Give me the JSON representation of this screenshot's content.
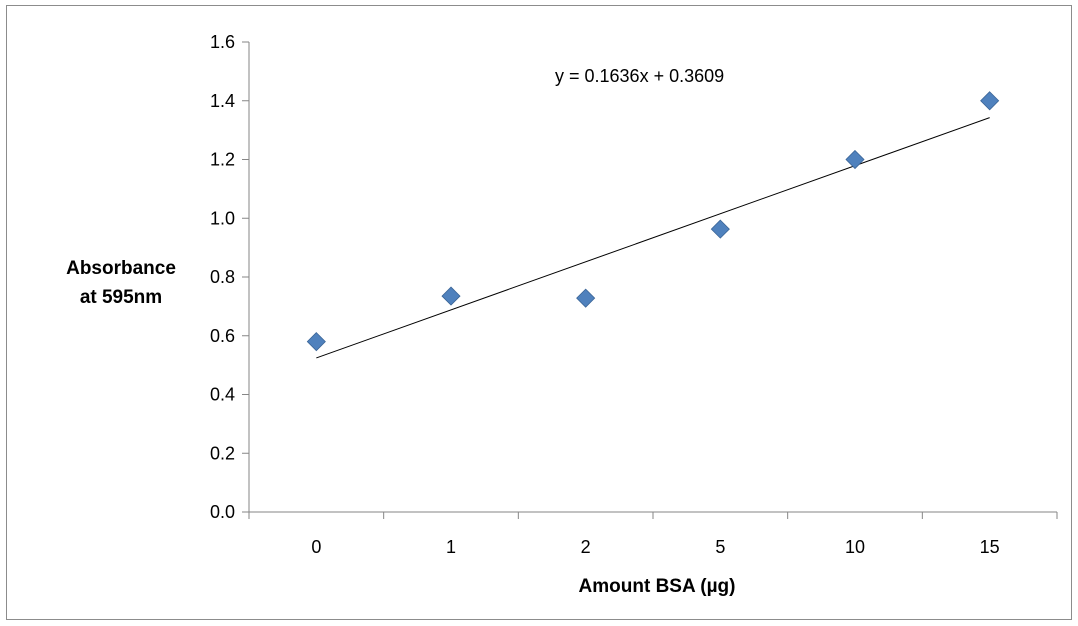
{
  "chart_data": {
    "type": "scatter",
    "title": "",
    "xlabel": "Amount BSA (µg)",
    "ylabel_lines": [
      "Absorbance",
      "at 595nm"
    ],
    "categories": [
      "0",
      "1",
      "2",
      "5",
      "10",
      "15"
    ],
    "series": [
      {
        "values": [
          0.58,
          0.735,
          0.728,
          0.963,
          1.2,
          1.4
        ],
        "marker": "diamond",
        "color": "#4f81bd"
      }
    ],
    "trendline": {
      "type": "linear",
      "equation": "y = 0.1636x + 0.3609",
      "slope": 0.1636,
      "intercept": 0.3609,
      "color": "#000000"
    },
    "y_ticks": [
      "0.0",
      "0.2",
      "0.4",
      "0.6",
      "0.8",
      "1.0",
      "1.2",
      "1.4",
      "1.6"
    ],
    "ylim": [
      0,
      1.6
    ],
    "grid": false,
    "legend": "none"
  }
}
